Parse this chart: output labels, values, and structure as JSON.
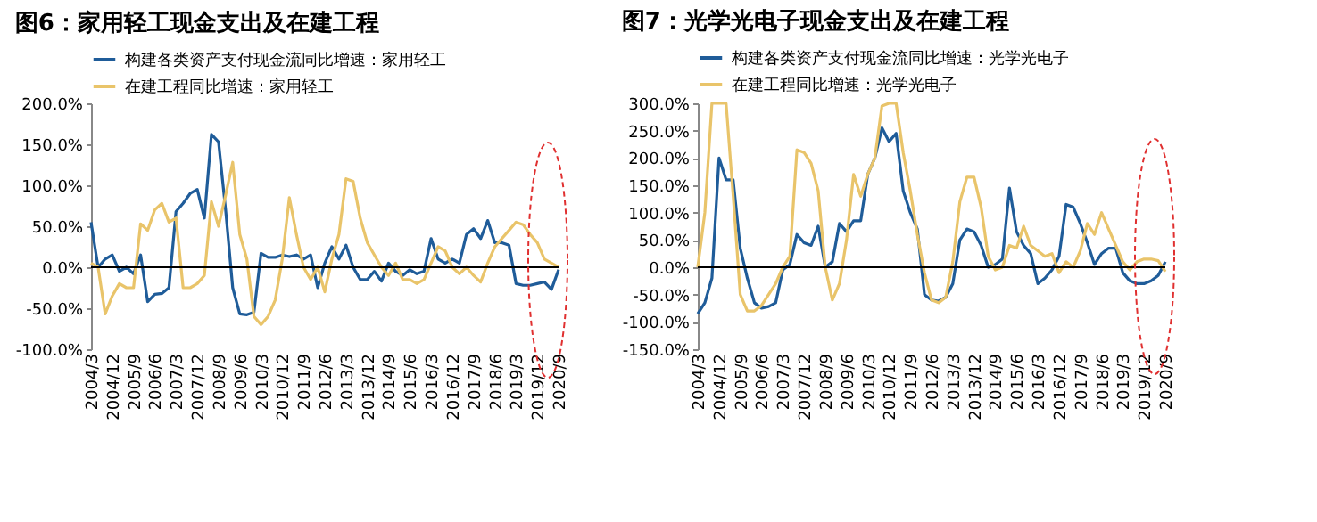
{
  "chart_data": [
    {
      "type": "line",
      "title": "图6：家用轻工现金支出及在建工程",
      "legend": "top",
      "categories": [
        "2004/3",
        null,
        null,
        "2004/12",
        null,
        null,
        "2005/9",
        null,
        null,
        "2006/6",
        null,
        null,
        "2007/3",
        null,
        null,
        "2007/12",
        null,
        null,
        "2008/9",
        null,
        null,
        "2009/6",
        null,
        null,
        "2010/3",
        null,
        null,
        "2010/12",
        null,
        null,
        "2011/9",
        null,
        null,
        "2012/6",
        null,
        null,
        "2013/3",
        null,
        null,
        "2013/12",
        null,
        null,
        "2014/9",
        null,
        null,
        "2015/6",
        null,
        null,
        "2016/3",
        null,
        null,
        "2016/12",
        null,
        null,
        "2017/9",
        null,
        null,
        "2018/6",
        null,
        null,
        "2019/3",
        null,
        null,
        "2019/12",
        null,
        null,
        "2020/9"
      ],
      "ylim": [
        -100,
        200
      ],
      "yticks": [
        {
          "value": -100,
          "label": "-100.0%"
        },
        {
          "value": -50,
          "label": "-50.0%"
        },
        {
          "value": 0,
          "label": "0.0%"
        },
        {
          "value": 50,
          "label": "50.0%"
        },
        {
          "value": 100,
          "label": "100.0%"
        },
        {
          "value": 150,
          "label": "150.0%"
        },
        {
          "value": 200,
          "label": "200.0%"
        }
      ],
      "ref_lines": [
        {
          "axis": "y",
          "value": 0,
          "color": "#000000"
        }
      ],
      "series": [
        {
          "name": "构建各类资产支付现金流同比增速：家用轻工",
          "color": "#1f5c99",
          "values": [
            55,
            0,
            10,
            15,
            -5,
            0,
            -8,
            15,
            -42,
            -33,
            -32,
            -25,
            68,
            78,
            90,
            95,
            60,
            162,
            153,
            70,
            -25,
            -57,
            -58,
            -55,
            17,
            12,
            12,
            15,
            13,
            15,
            10,
            15,
            -25,
            5,
            25,
            10,
            27,
            0,
            -15,
            -15,
            -5,
            -17,
            5,
            -5,
            -10,
            -3,
            -8,
            -5,
            35,
            10,
            5,
            10,
            5,
            40,
            47,
            35,
            57,
            30,
            30,
            27,
            -20,
            -22,
            -22,
            -20,
            -18,
            -27,
            -3
          ]
        },
        {
          "name": "在建工程同比增速：家用轻工",
          "color": "#e9c46a",
          "values": [
            5,
            0,
            -57,
            -35,
            -20,
            -25,
            -25,
            53,
            45,
            70,
            78,
            55,
            60,
            -25,
            -25,
            -20,
            -10,
            80,
            50,
            88,
            128,
            40,
            10,
            -60,
            -70,
            -60,
            -40,
            10,
            85,
            40,
            0,
            -15,
            0,
            -30,
            10,
            40,
            108,
            105,
            60,
            30,
            15,
            0,
            -10,
            5,
            -15,
            -15,
            -20,
            -15,
            5,
            25,
            20,
            0,
            -8,
            0,
            -10,
            -18,
            5,
            25,
            35,
            45,
            55,
            52,
            40,
            30,
            10,
            5,
            0
          ]
        }
      ]
    },
    {
      "type": "line",
      "title": "图7：光学光电子现金支出及在建工程",
      "legend": "top",
      "categories": [
        "2004/3",
        null,
        null,
        "2004/12",
        null,
        null,
        "2005/9",
        null,
        null,
        "2006/6",
        null,
        null,
        "2007/3",
        null,
        null,
        "2007/12",
        null,
        null,
        "2008/9",
        null,
        null,
        "2009/6",
        null,
        null,
        "2010/3",
        null,
        null,
        "2010/12",
        null,
        null,
        "2011/9",
        null,
        null,
        "2012/6",
        null,
        null,
        "2013/3",
        null,
        null,
        "2013/12",
        null,
        null,
        "2014/9",
        null,
        null,
        "2015/6",
        null,
        null,
        "2016/3",
        null,
        null,
        "2016/12",
        null,
        null,
        "2017/9",
        null,
        null,
        "2018/6",
        null,
        null,
        "2019/3",
        null,
        null,
        "2019/12",
        null,
        null,
        "2020/9"
      ],
      "ylim": [
        -150,
        300
      ],
      "yticks": [
        {
          "value": -150,
          "label": "-150.0%"
        },
        {
          "value": -100,
          "label": "-100.0%"
        },
        {
          "value": -50,
          "label": "-50.0%"
        },
        {
          "value": 0,
          "label": "0.0%"
        },
        {
          "value": 50,
          "label": "50.0%"
        },
        {
          "value": 100,
          "label": "100.0%"
        },
        {
          "value": 150,
          "label": "150.0%"
        },
        {
          "value": 200,
          "label": "200.0%"
        },
        {
          "value": 250,
          "label": "250.0%"
        },
        {
          "value": 300,
          "label": "300.0%"
        }
      ],
      "ref_lines": [
        {
          "axis": "y",
          "value": 0,
          "color": "#000000"
        }
      ],
      "series": [
        {
          "name": "构建各类资产支付现金流同比增速：光学光电子",
          "color": "#1f5c99",
          "values": [
            -85,
            -65,
            -20,
            200,
            160,
            160,
            35,
            -20,
            -65,
            -75,
            -72,
            -65,
            -5,
            5,
            60,
            45,
            40,
            75,
            0,
            10,
            80,
            65,
            85,
            85,
            170,
            200,
            255,
            230,
            245,
            140,
            100,
            70,
            -50,
            -60,
            -62,
            -55,
            -30,
            50,
            70,
            65,
            40,
            0,
            5,
            15,
            145,
            65,
            40,
            25,
            -30,
            -20,
            -5,
            20,
            115,
            110,
            80,
            45,
            5,
            25,
            35,
            35,
            -10,
            -25,
            -30,
            -30,
            -25,
            -15,
            10
          ]
        },
        {
          "name": "在建工程同比增速：光学光电子",
          "color": "#e9c46a",
          "values": [
            0,
            100,
            300,
            300,
            300,
            130,
            -50,
            -80,
            -80,
            -70,
            -50,
            -30,
            0,
            20,
            215,
            210,
            190,
            140,
            0,
            -60,
            -30,
            50,
            170,
            130,
            170,
            200,
            295,
            300,
            300,
            210,
            140,
            60,
            -10,
            -60,
            -65,
            -55,
            10,
            120,
            165,
            165,
            110,
            20,
            -5,
            0,
            40,
            35,
            75,
            40,
            30,
            20,
            25,
            -10,
            10,
            0,
            30,
            80,
            60,
            100,
            70,
            40,
            10,
            -5,
            10,
            15,
            15,
            12,
            -8
          ]
        }
      ]
    }
  ]
}
